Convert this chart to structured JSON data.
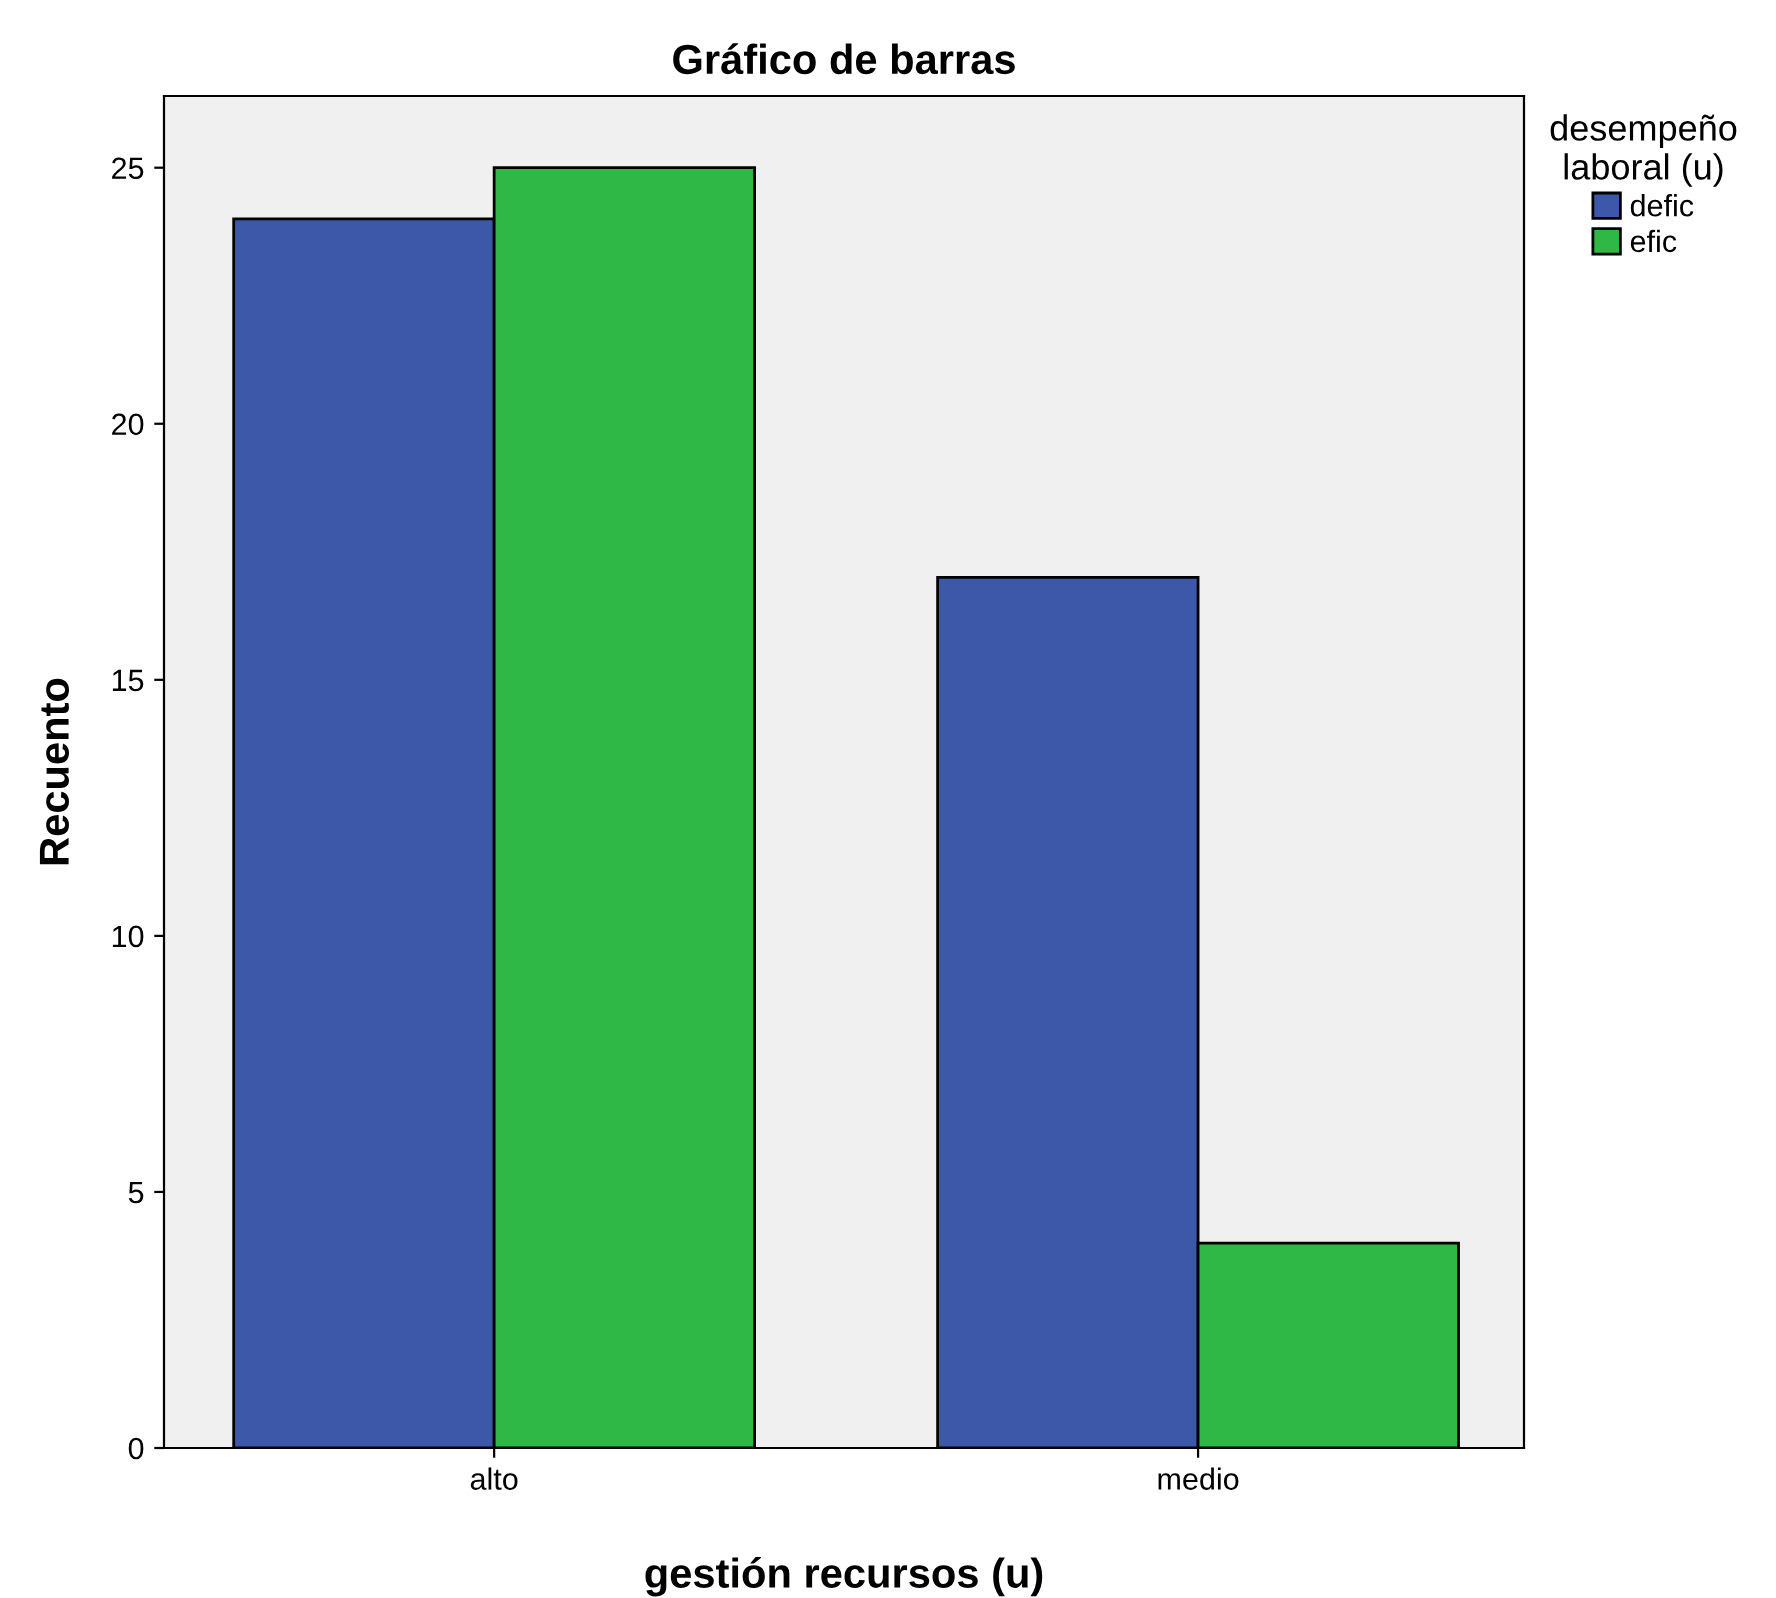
{
  "chart_data": {
    "type": "bar",
    "title": "Gráfico de barras",
    "xlabel": "gestión recursos (u)",
    "ylabel": "Recuento",
    "legend_title": "desempeño\nlaboral (u)",
    "categories": [
      "alto",
      "medio"
    ],
    "series": [
      {
        "name": "defic",
        "color": "#3d58a8",
        "values": [
          24,
          17
        ]
      },
      {
        "name": "efic",
        "color": "#2fb845",
        "values": [
          25,
          4
        ]
      }
    ],
    "ylim": [
      0,
      26.4
    ],
    "yticks": [
      0,
      5,
      10,
      15,
      20,
      25
    ],
    "grid": false,
    "legend": "top right"
  }
}
